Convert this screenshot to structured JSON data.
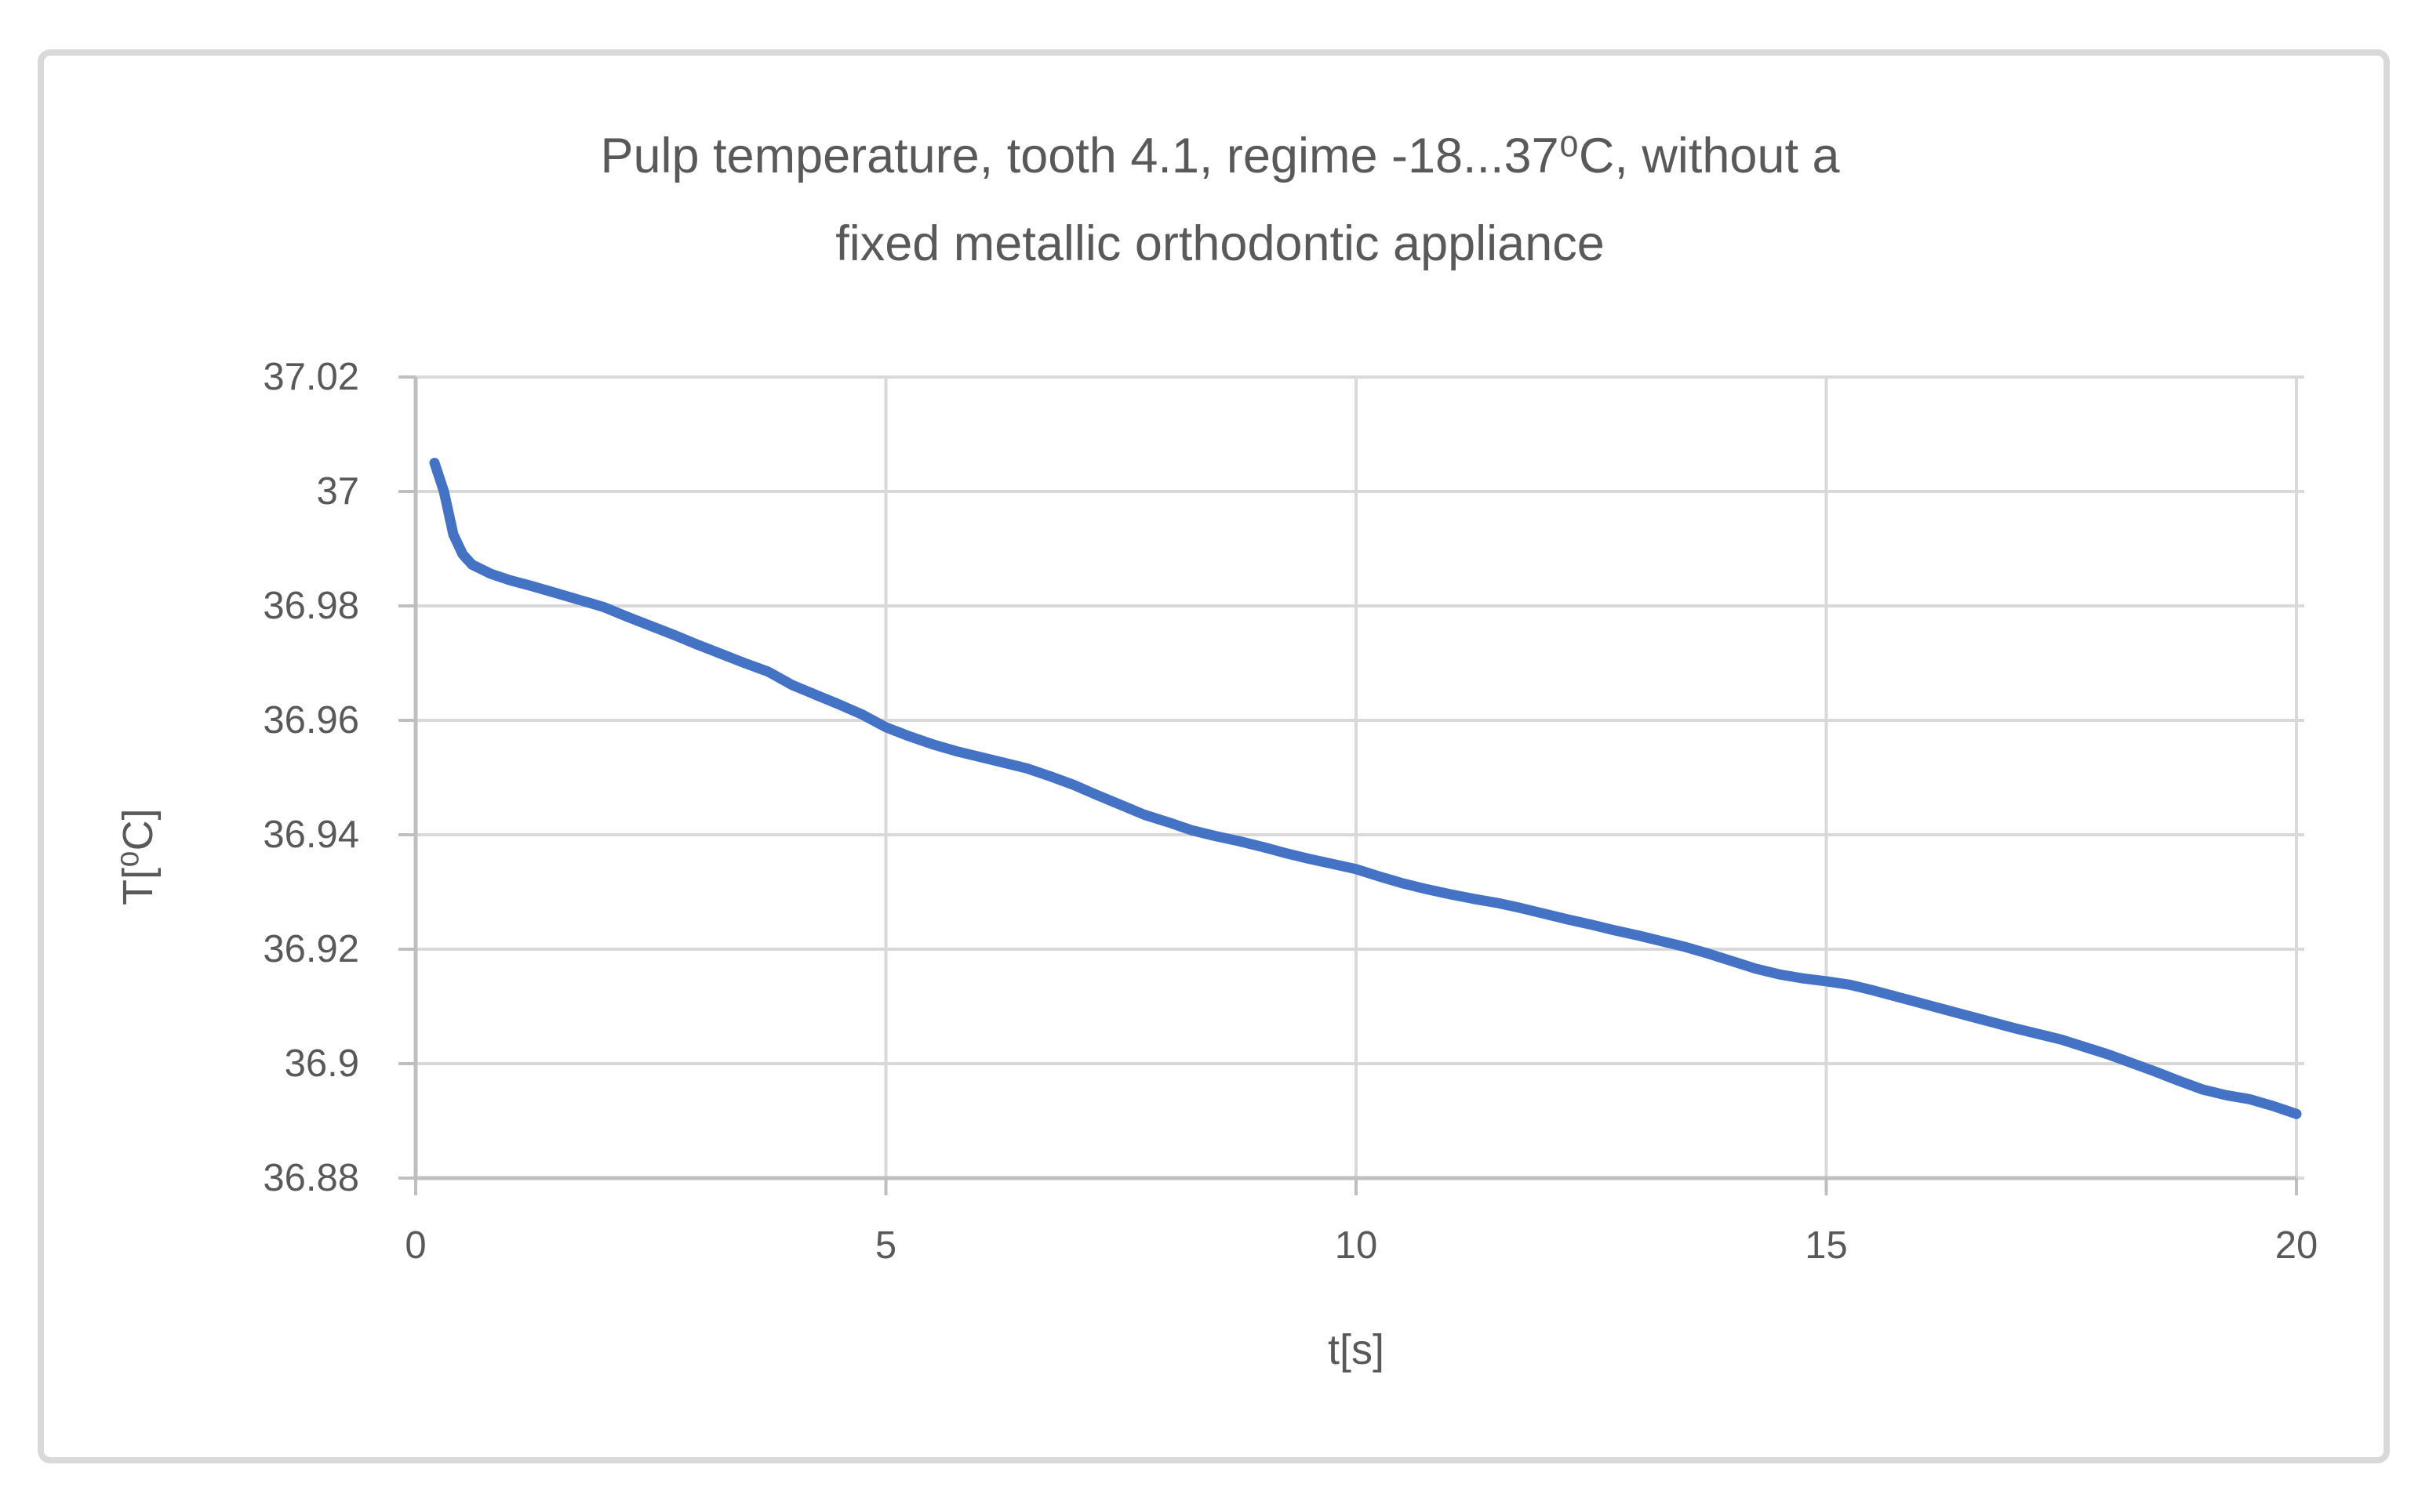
{
  "chart_data": {
    "type": "line",
    "title": "Pulp temperature, tooth 4.1, regime -18...37⁰C, without a fixed metallic orthodontic appliance",
    "title_lines": [
      "Pulp temperature, tooth 4.1, regime -18...37⁰C, without a",
      "fixed metallic orthodontic appliance"
    ],
    "xlabel": "t[s]",
    "ylabel": "T[⁰C]",
    "xlim": [
      0,
      20
    ],
    "ylim": [
      36.88,
      37.02
    ],
    "grid": true,
    "legend_position": "none",
    "x_ticks": {
      "values": [
        0,
        5,
        10,
        15,
        20
      ],
      "labels": [
        "0",
        "5",
        "10",
        "15",
        "20"
      ]
    },
    "y_ticks": {
      "values": [
        37.02,
        37.0,
        36.98,
        36.96,
        36.94,
        36.92,
        36.9,
        36.88
      ],
      "labels": [
        "37.02",
        "37",
        "36.98",
        "36.96",
        "36.94",
        "36.92",
        "36.9",
        "36.88"
      ]
    },
    "series": [
      {
        "name": "Pulp temperature",
        "color": "#4472C4",
        "points": [
          [
            0.2,
            37.005
          ],
          [
            0.3,
            37.0
          ],
          [
            0.4,
            36.9925
          ],
          [
            0.5,
            36.989
          ],
          [
            0.6,
            36.9872
          ],
          [
            0.8,
            36.9856
          ],
          [
            1.0,
            36.9845
          ],
          [
            1.25,
            36.9834
          ],
          [
            1.5,
            36.9822
          ],
          [
            1.75,
            36.981
          ],
          [
            2.0,
            36.9798
          ],
          [
            2.25,
            36.9781
          ],
          [
            2.5,
            36.9765
          ],
          [
            2.75,
            36.9749
          ],
          [
            3.0,
            36.9732
          ],
          [
            3.25,
            36.9716
          ],
          [
            3.5,
            36.97
          ],
          [
            3.75,
            36.9685
          ],
          [
            4.0,
            36.9662
          ],
          [
            4.25,
            36.9645
          ],
          [
            4.5,
            36.9628
          ],
          [
            4.75,
            36.961
          ],
          [
            5.0,
            36.9588
          ],
          [
            5.25,
            36.9572
          ],
          [
            5.5,
            36.9558
          ],
          [
            5.75,
            36.9546
          ],
          [
            6.0,
            36.9536
          ],
          [
            6.25,
            36.9526
          ],
          [
            6.5,
            36.9516
          ],
          [
            6.75,
            36.9502
          ],
          [
            7.0,
            36.9487
          ],
          [
            7.25,
            36.9469
          ],
          [
            7.5,
            36.9452
          ],
          [
            7.75,
            36.9435
          ],
          [
            8.0,
            36.9422
          ],
          [
            8.25,
            36.9408
          ],
          [
            8.5,
            36.9398
          ],
          [
            8.75,
            36.9389
          ],
          [
            9.0,
            36.9379
          ],
          [
            9.25,
            36.9368
          ],
          [
            9.5,
            36.9358
          ],
          [
            9.75,
            36.9349
          ],
          [
            10.0,
            36.934
          ],
          [
            10.25,
            36.9327
          ],
          [
            10.5,
            36.9315
          ],
          [
            10.75,
            36.9305
          ],
          [
            11.0,
            36.9296
          ],
          [
            11.25,
            36.9288
          ],
          [
            11.5,
            36.9281
          ],
          [
            11.75,
            36.9272
          ],
          [
            12.0,
            36.9262
          ],
          [
            12.25,
            36.9252
          ],
          [
            12.5,
            36.9243
          ],
          [
            12.75,
            36.9233
          ],
          [
            13.0,
            36.9224
          ],
          [
            13.25,
            36.9214
          ],
          [
            13.5,
            36.9204
          ],
          [
            13.75,
            36.9192
          ],
          [
            14.0,
            36.9179
          ],
          [
            14.25,
            36.9166
          ],
          [
            14.5,
            36.9156
          ],
          [
            14.75,
            36.9149
          ],
          [
            15.0,
            36.9144
          ],
          [
            15.25,
            36.9138
          ],
          [
            15.5,
            36.9128
          ],
          [
            15.75,
            36.9117
          ],
          [
            16.0,
            36.9106
          ],
          [
            16.25,
            36.9095
          ],
          [
            16.5,
            36.9084
          ],
          [
            16.75,
            36.9073
          ],
          [
            17.0,
            36.9062
          ],
          [
            17.25,
            36.9052
          ],
          [
            17.5,
            36.9042
          ],
          [
            17.75,
            36.9029
          ],
          [
            18.0,
            36.9016
          ],
          [
            18.25,
            36.9001
          ],
          [
            18.5,
            36.8986
          ],
          [
            18.75,
            36.897
          ],
          [
            19.0,
            36.8955
          ],
          [
            19.25,
            36.8945
          ],
          [
            19.5,
            36.8938
          ],
          [
            19.75,
            36.8926
          ],
          [
            20.0,
            36.8912
          ]
        ]
      }
    ],
    "colors": {
      "line": "#4472C4",
      "gridline": "#d9d9d9",
      "axis_line": "#bfbfbf",
      "text": "#595959",
      "frame_border": "#d9d9d9",
      "background": "#ffffff"
    }
  }
}
